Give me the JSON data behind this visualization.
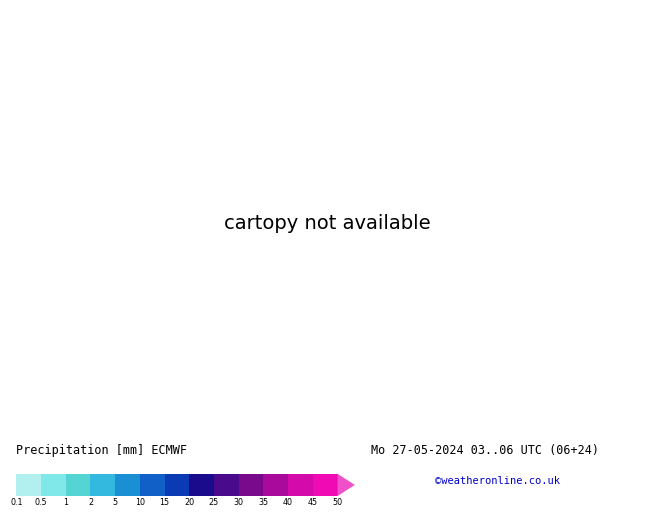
{
  "title_left": "Precipitation [mm] ECMWF",
  "title_right": "Mo 27-05-2024 03..06 UTC (06+24)",
  "credit": "©weatheronline.co.uk",
  "colorbar_values": [
    0.1,
    0.5,
    1,
    2,
    5,
    10,
    15,
    20,
    25,
    30,
    35,
    40,
    45,
    50
  ],
  "colorbar_colors": [
    "#b2f0f0",
    "#80e8e8",
    "#55d4d4",
    "#33b8e0",
    "#1a8fd4",
    "#1060c8",
    "#0a3ab4",
    "#1a0a8c",
    "#4a0a8c",
    "#7a0a8c",
    "#aa0a9c",
    "#d40aaa",
    "#f00ab4",
    "#f050c8"
  ],
  "ocean_color": "#e8e8e8",
  "land_color": "#c8dca8",
  "land_color2": "#b8cc98",
  "fig_bg": "#ffffff",
  "title_fontsize": 8.5,
  "credit_color": "#0000cc",
  "credit_fontsize": 7.5,
  "map_extent": [
    -30,
    45,
    28,
    72
  ],
  "isobar_blue_lw": 1.2,
  "isobar_red_lw": 1.2,
  "label_fontsize": 7.0
}
